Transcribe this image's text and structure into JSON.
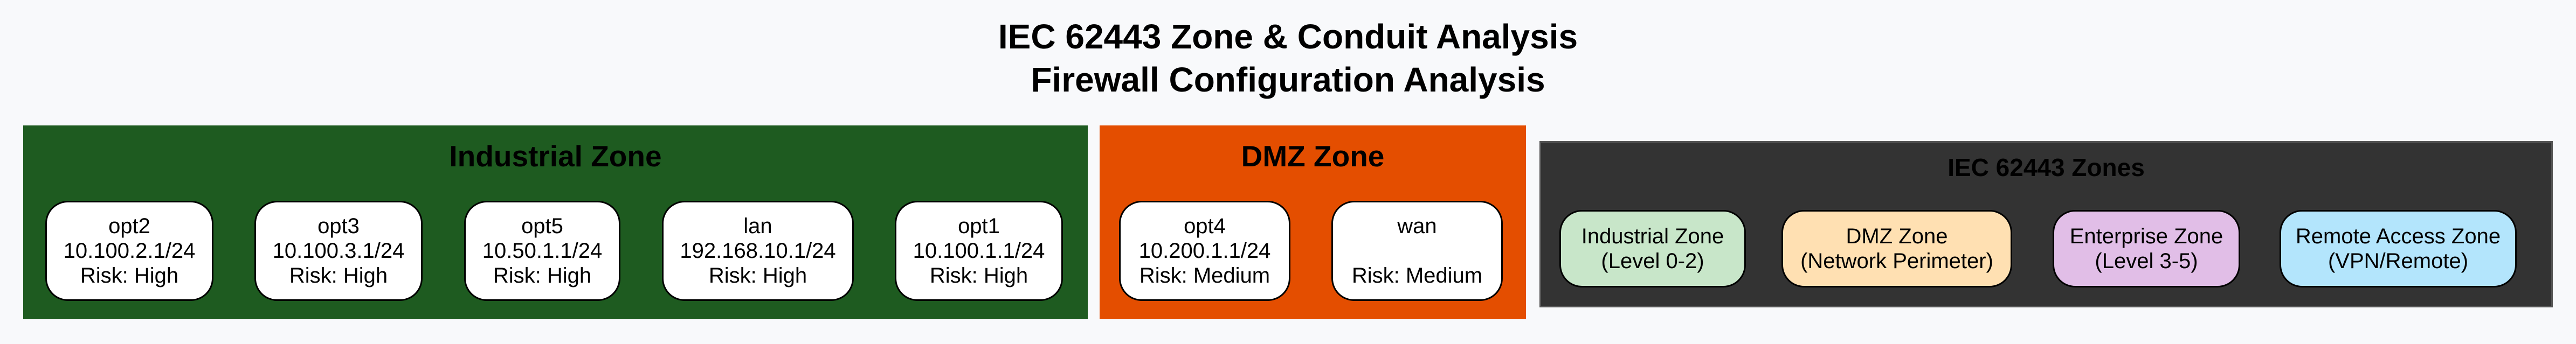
{
  "title": {
    "line1": "IEC 62443 Zone & Conduit Analysis",
    "line2": "Firewall Configuration Analysis"
  },
  "zones": [
    {
      "name": "Industrial Zone",
      "color": "#1e5b20",
      "interfaces": [
        {
          "name": "opt2",
          "subnet": "10.100.2.1/24",
          "risk": "Risk: High"
        },
        {
          "name": "opt3",
          "subnet": "10.100.3.1/24",
          "risk": "Risk: High"
        },
        {
          "name": "opt5",
          "subnet": "10.50.1.1/24",
          "risk": "Risk: High"
        },
        {
          "name": "lan",
          "subnet": "192.168.10.1/24",
          "risk": "Risk: High"
        },
        {
          "name": "opt1",
          "subnet": "10.100.1.1/24",
          "risk": "Risk: High"
        }
      ]
    },
    {
      "name": "DMZ Zone",
      "color": "#e44e00",
      "interfaces": [
        {
          "name": "opt4",
          "subnet": "10.200.1.1/24",
          "risk": "Risk: Medium"
        },
        {
          "name": "wan",
          "subnet": "",
          "risk": "Risk: Medium"
        }
      ]
    }
  ],
  "legend": {
    "title": "IEC 62443 Zones",
    "background": "#333333",
    "items": [
      {
        "line1": "Industrial Zone",
        "line2": "(Level 0-2)",
        "color": "#c8e6c9"
      },
      {
        "line1": "DMZ Zone",
        "line2": "(Network Perimeter)",
        "color": "#ffe0b2"
      },
      {
        "line1": "Enterprise Zone",
        "line2": "(Level 3-5)",
        "color": "#e1bee7"
      },
      {
        "line1": "Remote Access Zone",
        "line2": "(VPN/Remote)",
        "color": "#b3e5fc"
      }
    ]
  }
}
